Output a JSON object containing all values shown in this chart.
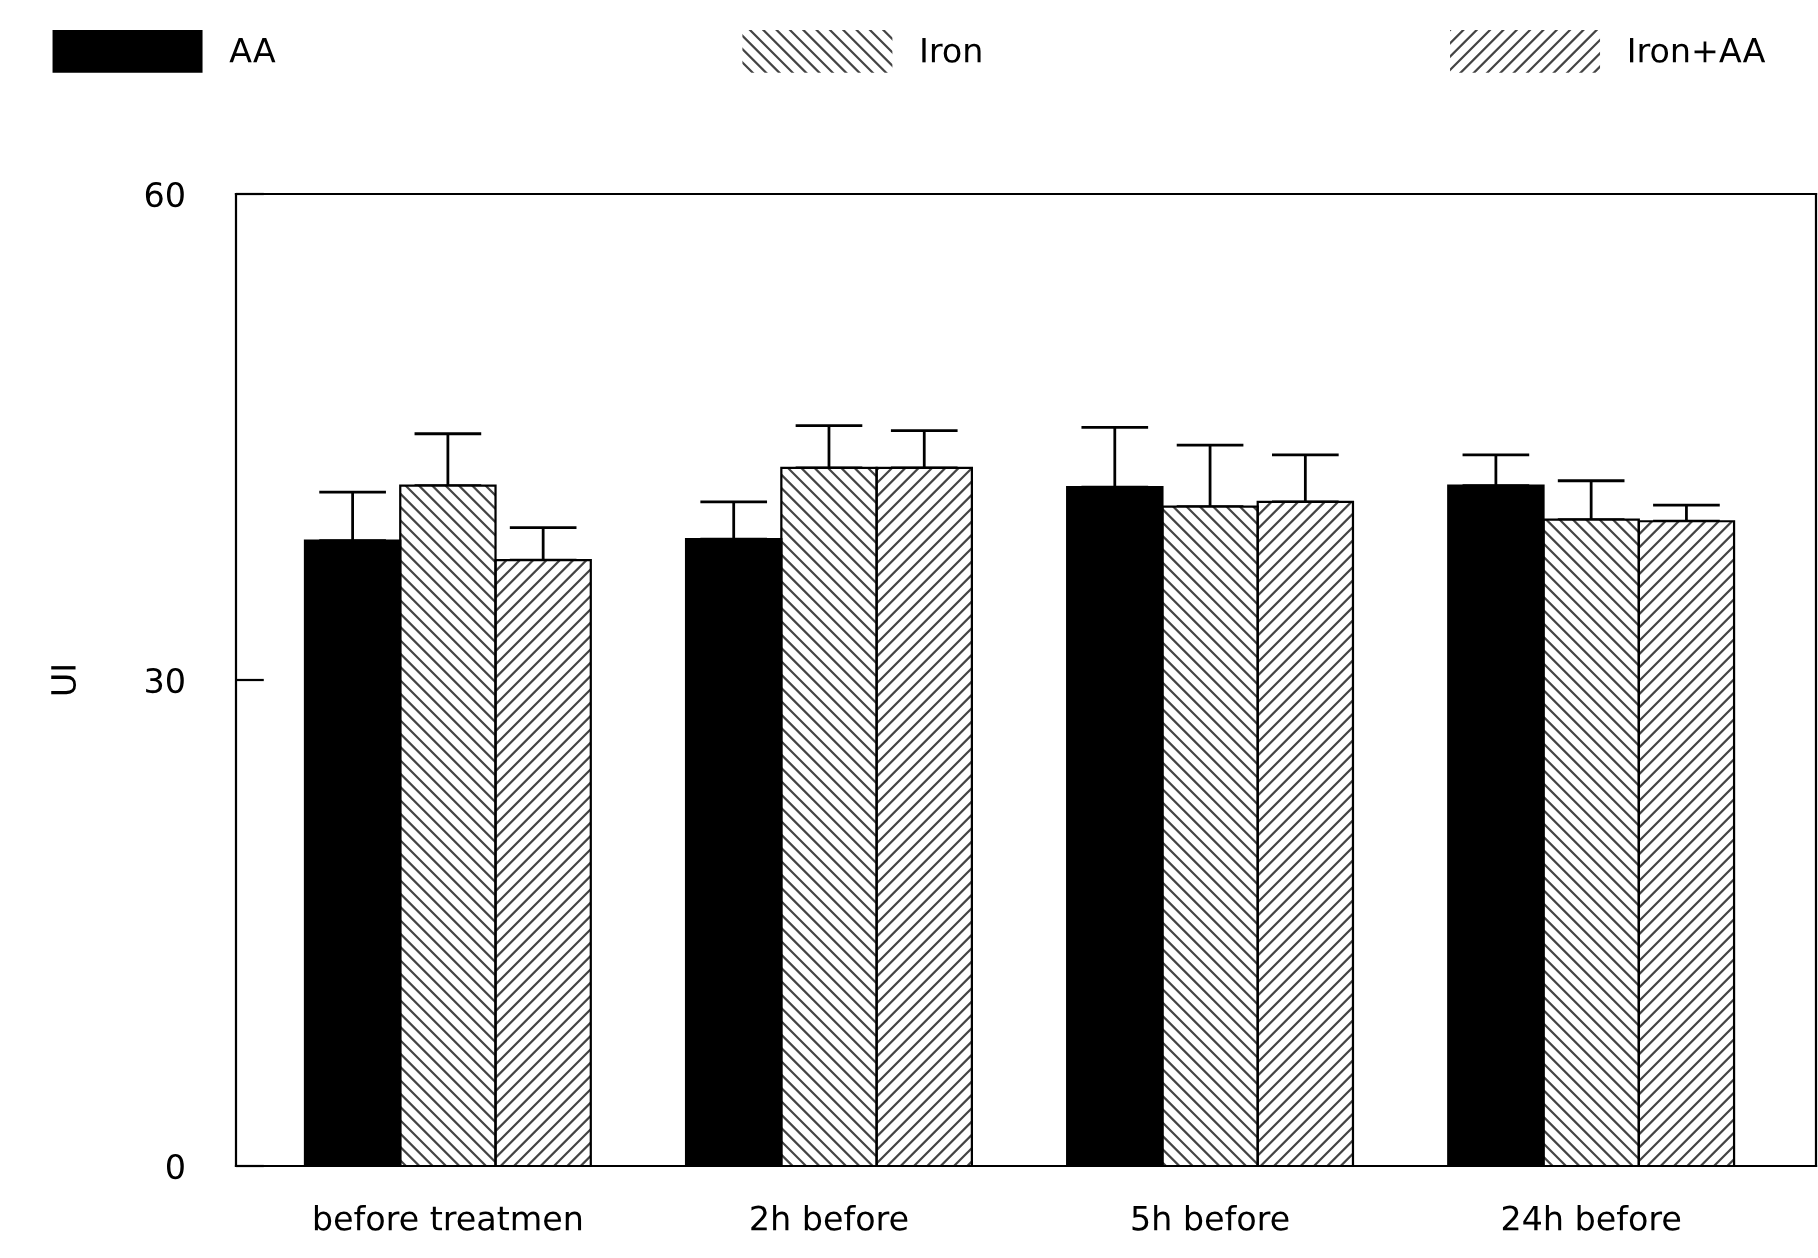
{
  "chart_data": {
    "type": "bar",
    "ylabel": "UI",
    "categories": [
      "before treatmen",
      "2h before",
      "5h before",
      "24h before"
    ],
    "series": [
      {
        "name": "AA",
        "color": "#000000",
        "values": [
          38.6,
          38.7,
          41.9,
          42.0
        ],
        "errors": [
          [
            38.6,
            41.6
          ],
          [
            38.7,
            41.0
          ],
          [
            41.9,
            45.6
          ],
          [
            42.0,
            43.9
          ]
        ]
      },
      {
        "name": "Iron",
        "color": "#ffffff",
        "values": [
          42.0,
          43.1,
          40.7,
          39.9
        ],
        "errors": [
          [
            42.0,
            45.2
          ],
          [
            43.1,
            45.7
          ],
          [
            40.7,
            44.5
          ],
          [
            39.9,
            42.3
          ]
        ]
      },
      {
        "name": "Iron+AA",
        "color": "#ffffff",
        "values": [
          37.4,
          43.1,
          41.0,
          39.8
        ],
        "errors": [
          [
            37.4,
            39.4
          ],
          [
            43.1,
            45.4
          ],
          [
            41.0,
            43.9
          ],
          [
            39.8,
            40.8
          ]
        ]
      }
    ],
    "ylim": [
      0,
      60
    ],
    "yticks": [
      0,
      30,
      60
    ],
    "grid": false,
    "legend": "top"
  }
}
